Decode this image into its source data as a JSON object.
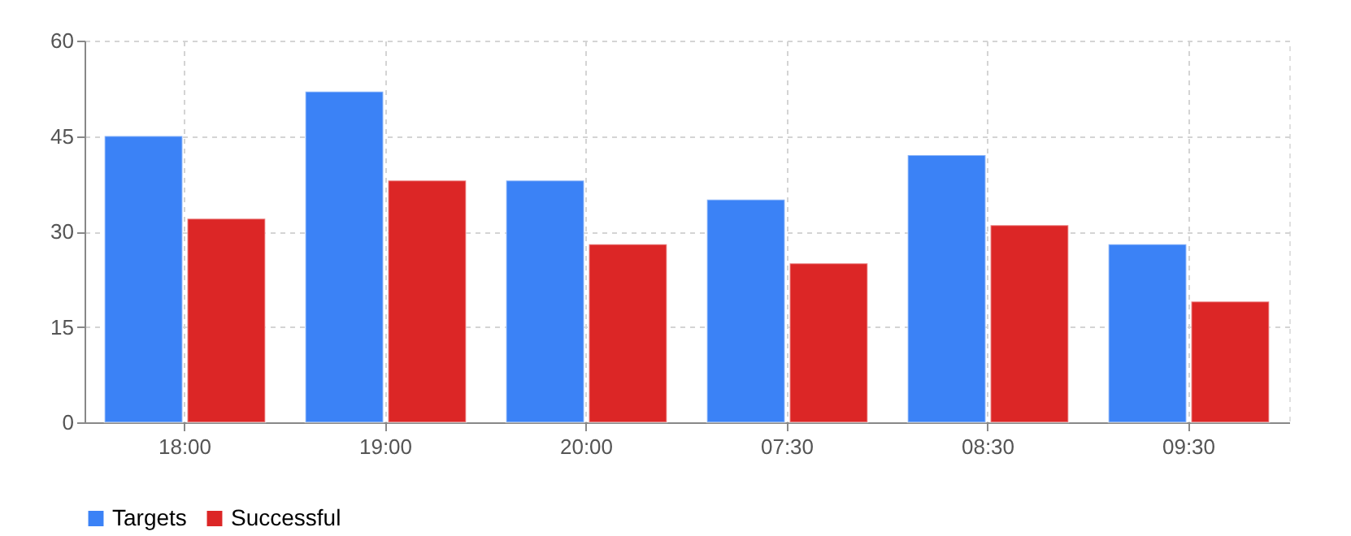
{
  "chart_data": {
    "type": "bar",
    "categories": [
      "18:00",
      "19:00",
      "20:00",
      "07:30",
      "08:30",
      "09:30"
    ],
    "series": [
      {
        "name": "Targets",
        "color": "#3b82f6",
        "values": [
          45,
          52,
          38,
          35,
          42,
          28
        ]
      },
      {
        "name": "Successful",
        "color": "#dc2626",
        "values": [
          32,
          38,
          28,
          25,
          31,
          19
        ]
      }
    ],
    "ylim": [
      0,
      60
    ],
    "yticks": [
      0,
      15,
      30,
      45,
      60
    ],
    "grid": true,
    "legend": "bottom"
  }
}
